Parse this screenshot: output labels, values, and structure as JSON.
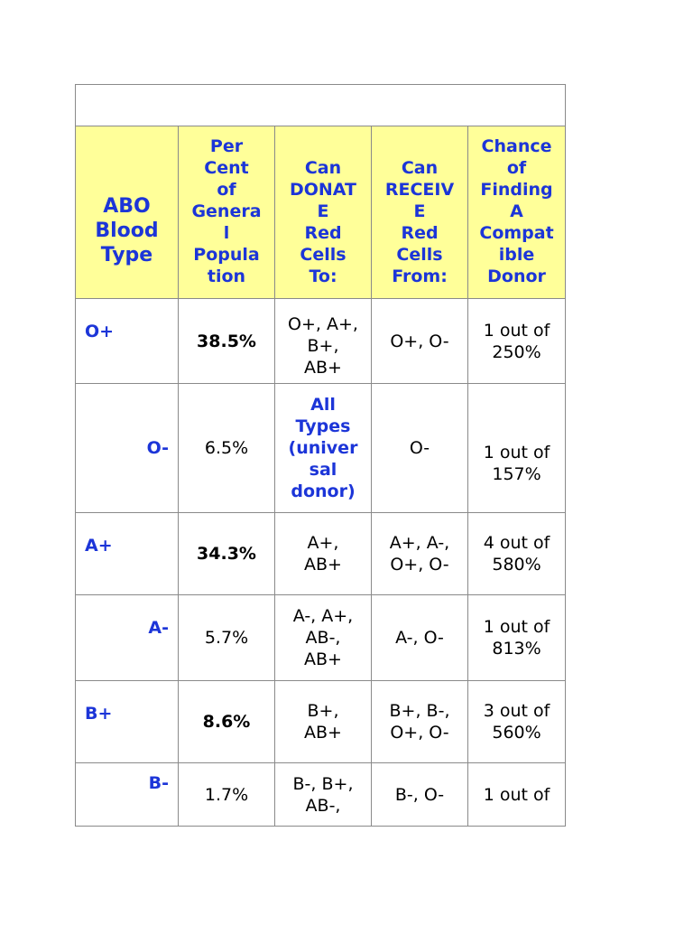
{
  "table": {
    "headers": {
      "type": [
        "ABO",
        "Blood",
        "Type"
      ],
      "percent": [
        "Per",
        "Cent",
        "of",
        "Genera",
        "l",
        "Popula",
        "tion"
      ],
      "donate": [
        "Can",
        "DONAT",
        "E",
        "Red",
        "Cells",
        "To:"
      ],
      "receive": [
        "Can",
        "RECEIV",
        "E",
        "Red",
        "Cells",
        "From:"
      ],
      "chance": [
        "Chance",
        "of",
        "Finding",
        "A",
        "Compat",
        "ible",
        "Donor"
      ]
    },
    "rows": [
      {
        "type": "O+",
        "percent": "38.5%",
        "donate": [
          "O+, A+,",
          "B+,",
          "AB+"
        ],
        "receive": [
          "O+, O-"
        ],
        "chance": [
          "1 out of",
          "250%"
        ]
      },
      {
        "type": "O-",
        "percent": "6.5%",
        "donate": [
          "All",
          "Types",
          "(univer",
          "sal",
          "donor)"
        ],
        "receive": [
          "O-"
        ],
        "chance": [
          "1 out of",
          "157%"
        ]
      },
      {
        "type": "A+",
        "percent": "34.3%",
        "donate": [
          "A+,",
          "AB+"
        ],
        "receive": [
          "A+, A-,",
          "O+, O-"
        ],
        "chance": [
          "4 out of",
          "580%"
        ]
      },
      {
        "type": "A-",
        "percent": "5.7%",
        "donate": [
          "A-, A+,",
          "AB-,",
          "AB+"
        ],
        "receive": [
          "A-, O-"
        ],
        "chance": [
          "1 out of",
          "813%"
        ]
      },
      {
        "type": "B+",
        "percent": "8.6%",
        "donate": [
          "B+,",
          "AB+"
        ],
        "receive": [
          "B+, B-,",
          "O+, O-"
        ],
        "chance": [
          "3 out of",
          "560%"
        ]
      },
      {
        "type": "B-",
        "percent": "1.7%",
        "donate": [
          "B-, B+,",
          "AB-,"
        ],
        "receive": [
          "B-, O-"
        ],
        "chance": [
          "1 out of"
        ]
      }
    ]
  }
}
